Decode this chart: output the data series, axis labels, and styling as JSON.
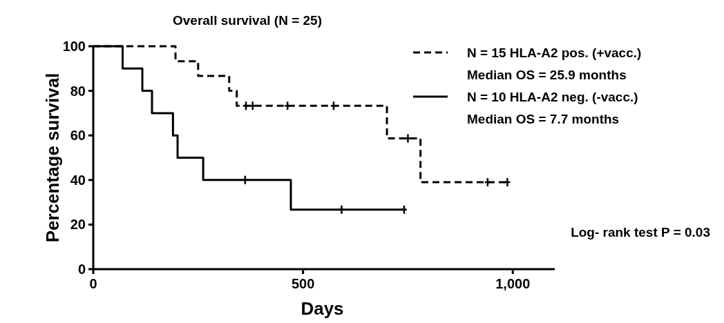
{
  "chart_data": {
    "type": "step",
    "title": "Overall survival (N = 25)",
    "xlabel": "Days",
    "ylabel": "Percentage survival",
    "xlim": [
      0,
      1100
    ],
    "xticks": [
      0,
      500,
      {
        "value": 1000,
        "label": "1,000"
      }
    ],
    "ylim": [
      0,
      100
    ],
    "yticks": [
      0,
      20,
      40,
      60,
      80,
      100
    ],
    "series": [
      {
        "name": "N = 15 HLA-A2 pos. (+vacc.)",
        "color": "#000000",
        "line_style": "dashed",
        "x": [
          0,
          196,
          250,
          324,
          342,
          700,
          780,
          987
        ],
        "values": [
          100,
          93.3,
          86.7,
          80,
          73.3,
          58.7,
          39,
          39
        ]
      },
      {
        "name": "N = 10 HLA-A2 neg. (-vacc.)",
        "color": "#000000",
        "line_style": "solid",
        "x": [
          0,
          70,
          117,
          140,
          190,
          201,
          262,
          471,
          741
        ],
        "values": [
          100,
          90,
          80,
          70,
          60,
          50,
          40,
          26.7,
          26.7
        ]
      },
      {
        "type": "scatter",
        "color": "#000000",
        "marker": "cross",
        "x": [
          364,
          380,
          463,
          573,
          750,
          940,
          987
        ],
        "values": [
          73.3,
          73.3,
          73.3,
          73.3,
          58.7,
          39,
          39
        ]
      },
      {
        "type": "scatter",
        "color": "#000000",
        "marker": "cross",
        "x": [
          362,
          592,
          741
        ],
        "values": [
          40,
          26.7,
          26.7
        ]
      }
    ],
    "legend": "top right",
    "grid": false,
    "annotations": [
      "Median OS = 25.9 months",
      "Median OS = 7.7 months",
      "Log- rank test P = 0.03"
    ]
  }
}
